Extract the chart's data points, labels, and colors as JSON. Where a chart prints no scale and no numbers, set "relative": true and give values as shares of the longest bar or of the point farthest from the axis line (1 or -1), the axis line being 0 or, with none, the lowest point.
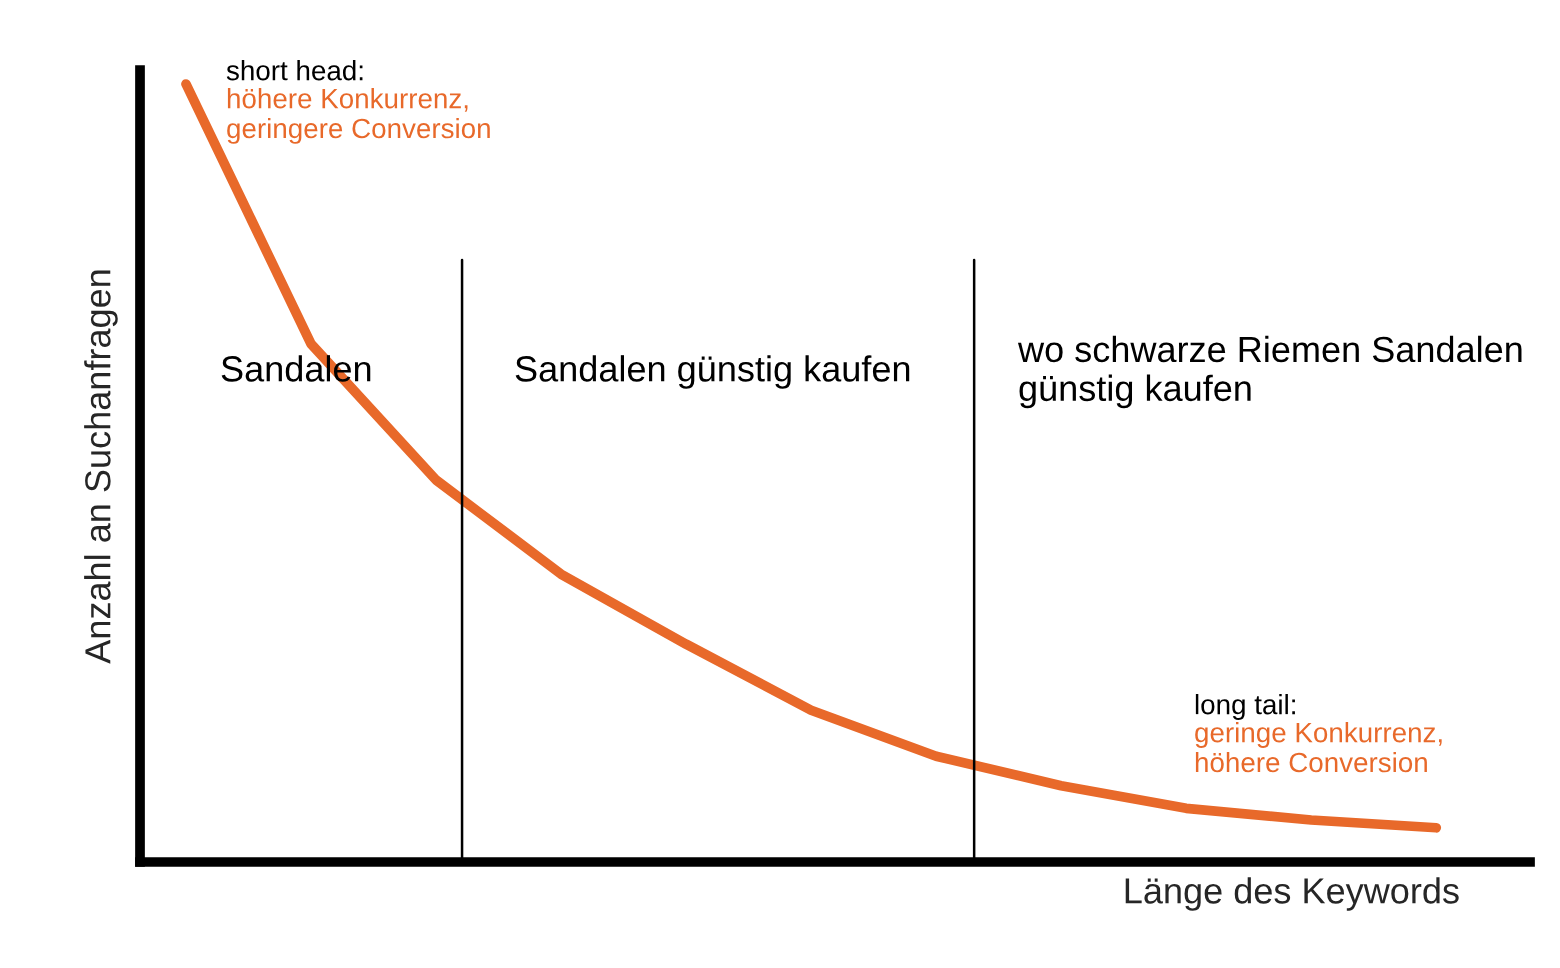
{
  "chart_data": {
    "type": "line",
    "relative": true,
    "xlabel": "Länge des Keywords",
    "ylabel": "Anzahl an Suchanfragen",
    "categories": [
      null,
      null,
      null,
      null,
      null,
      null,
      null,
      null,
      null,
      null,
      null
    ],
    "series": [
      {
        "color": "#e8692a",
        "values": [
          1.0,
          0.666,
          0.491,
          0.37,
          0.28,
          0.195,
          0.136,
          0.098,
          0.069,
          0.054,
          0.044
        ]
      }
    ],
    "annotations": [
      "short head:",
      "höhere Konkurrenz,\ngeringere Conversion",
      "Sandalen",
      "Sandalen günstig kaufen",
      "wo schwarze Riemen Sandalen\ngünstig kaufen",
      "long tail:",
      "geringe Konkurrenz,\nhöhere Conversion"
    ],
    "grid": false,
    "legend": false,
    "marker": "none",
    "line_style": "solid"
  }
}
